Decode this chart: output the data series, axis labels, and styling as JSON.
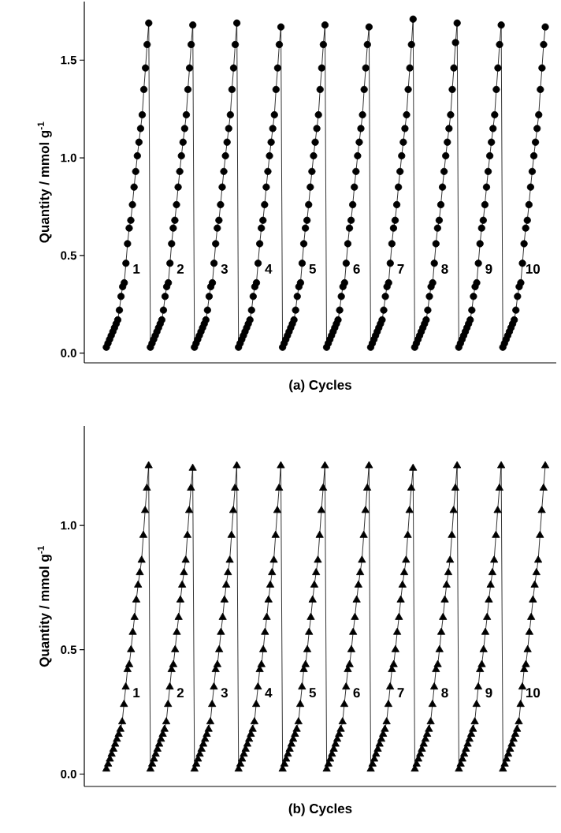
{
  "chart_data": [
    {
      "type": "line",
      "xlabel": "(a) Cycles",
      "ylabel": "Quantity / mmol g$^{-1}$",
      "marker": "circle",
      "tick_labels": "y",
      "ylim": [
        -0.05,
        1.8
      ],
      "yticks": [
        {
          "value": 0,
          "label": "0.0"
        },
        {
          "value": 0.5,
          "label": "0.5"
        },
        {
          "value": 1,
          "label": "1.0"
        },
        {
          "value": 1.5,
          "label": "1.5"
        }
      ],
      "categories": [
        null,
        null,
        null,
        null,
        null,
        null,
        null,
        null,
        null,
        null,
        null,
        null,
        null,
        null,
        null,
        null,
        null,
        null,
        null,
        null,
        null,
        null,
        null,
        null,
        null,
        null,
        null,
        null,
        null,
        null,
        null,
        null,
        null,
        null,
        null,
        null,
        null,
        null,
        null,
        null,
        null,
        null,
        null,
        null,
        null,
        null,
        null,
        null,
        null,
        null,
        null,
        null,
        null,
        null,
        null,
        null,
        null,
        null,
        null,
        null,
        null,
        null,
        null,
        null,
        null,
        null,
        null,
        null,
        null,
        null,
        null,
        null,
        null,
        null,
        null,
        null,
        null,
        null,
        null,
        null,
        null,
        null,
        null,
        null,
        null,
        null,
        null,
        null,
        null,
        null,
        null,
        null,
        null,
        null,
        null,
        null,
        null,
        null,
        null,
        null,
        null,
        null,
        null,
        null,
        null,
        null,
        null,
        null,
        null,
        null,
        null,
        null,
        null,
        null,
        null,
        null,
        null,
        null,
        null,
        null,
        null,
        null,
        null,
        null,
        null,
        null,
        null,
        null,
        null,
        null,
        null,
        null,
        null,
        null,
        null,
        null,
        null,
        null,
        null,
        null,
        null,
        null,
        null,
        null,
        null,
        null,
        null,
        null,
        null,
        null,
        null,
        null,
        null,
        null,
        null,
        null,
        null,
        null,
        null,
        null,
        null,
        null,
        null,
        null,
        null,
        null,
        null,
        null,
        null,
        null,
        null,
        null,
        null,
        null,
        null,
        null,
        null,
        null,
        null,
        null,
        null,
        null,
        null,
        null,
        null,
        null,
        null,
        null,
        null,
        null,
        null,
        null,
        null,
        null,
        null,
        null,
        null,
        null,
        null,
        null,
        null,
        null,
        null,
        null,
        null,
        null,
        null,
        null,
        null,
        null,
        null,
        null,
        null,
        null,
        null,
        null,
        null,
        null,
        null,
        null,
        null,
        null,
        null,
        null,
        null,
        null,
        null,
        null,
        null,
        null,
        null,
        null,
        null,
        null,
        null,
        null,
        null,
        null,
        null,
        null,
        null,
        null,
        null,
        null,
        null,
        null,
        null,
        null,
        null,
        null,
        null,
        null,
        null,
        null,
        null,
        null,
        null,
        null,
        null,
        null,
        null,
        null,
        null,
        null,
        null,
        null,
        null,
        null,
        null,
        null
      ],
      "series": [
        {
          "color": "#000000",
          "values": [
            0.03,
            0.05,
            0.07,
            0.09,
            0.11,
            0.13,
            0.15,
            0.17,
            0.22,
            0.29,
            0.34,
            0.36,
            0.46,
            0.56,
            0.64,
            0.68,
            0.76,
            0.85,
            0.93,
            1.01,
            1.08,
            1.15,
            1.22,
            1.35,
            1.46,
            1.58,
            1.69,
            0.03,
            0.05,
            0.07,
            0.09,
            0.11,
            0.13,
            0.15,
            0.17,
            0.22,
            0.29,
            0.34,
            0.36,
            0.46,
            0.56,
            0.64,
            0.68,
            0.76,
            0.85,
            0.93,
            1.01,
            1.08,
            1.15,
            1.22,
            1.35,
            1.46,
            1.58,
            1.68,
            0.03,
            0.05,
            0.07,
            0.09,
            0.11,
            0.13,
            0.15,
            0.17,
            0.22,
            0.29,
            0.34,
            0.36,
            0.46,
            0.56,
            0.64,
            0.68,
            0.76,
            0.85,
            0.93,
            1.01,
            1.08,
            1.15,
            1.22,
            1.35,
            1.46,
            1.58,
            1.69,
            0.03,
            0.05,
            0.07,
            0.09,
            0.11,
            0.13,
            0.15,
            0.17,
            0.22,
            0.29,
            0.34,
            0.36,
            0.46,
            0.56,
            0.64,
            0.68,
            0.76,
            0.85,
            0.93,
            1.01,
            1.08,
            1.15,
            1.22,
            1.35,
            1.46,
            1.58,
            1.67,
            0.03,
            0.05,
            0.07,
            0.09,
            0.11,
            0.13,
            0.15,
            0.17,
            0.22,
            0.29,
            0.34,
            0.36,
            0.46,
            0.56,
            0.64,
            0.68,
            0.76,
            0.85,
            0.93,
            1.01,
            1.08,
            1.15,
            1.22,
            1.35,
            1.46,
            1.58,
            1.68,
            0.03,
            0.05,
            0.07,
            0.09,
            0.11,
            0.13,
            0.15,
            0.17,
            0.22,
            0.29,
            0.34,
            0.36,
            0.46,
            0.56,
            0.64,
            0.68,
            0.76,
            0.85,
            0.93,
            1.01,
            1.08,
            1.15,
            1.22,
            1.35,
            1.46,
            1.58,
            1.67,
            0.03,
            0.05,
            0.07,
            0.09,
            0.11,
            0.13,
            0.15,
            0.17,
            0.22,
            0.29,
            0.34,
            0.36,
            0.46,
            0.56,
            0.64,
            0.68,
            0.76,
            0.85,
            0.93,
            1.01,
            1.08,
            1.15,
            1.22,
            1.35,
            1.46,
            1.58,
            1.71,
            0.03,
            0.05,
            0.07,
            0.09,
            0.11,
            0.13,
            0.15,
            0.17,
            0.22,
            0.29,
            0.34,
            0.36,
            0.46,
            0.56,
            0.64,
            0.68,
            0.76,
            0.85,
            0.93,
            1.01,
            1.08,
            1.15,
            1.22,
            1.35,
            1.46,
            1.59,
            1.69,
            0.03,
            0.05,
            0.07,
            0.09,
            0.11,
            0.13,
            0.15,
            0.17,
            0.22,
            0.29,
            0.34,
            0.36,
            0.46,
            0.56,
            0.64,
            0.68,
            0.76,
            0.85,
            0.93,
            1.01,
            1.08,
            1.15,
            1.22,
            1.35,
            1.46,
            1.58,
            1.68,
            0.03,
            0.05,
            0.07,
            0.09,
            0.11,
            0.13,
            0.15,
            0.17,
            0.22,
            0.29,
            0.34,
            0.36,
            0.46,
            0.56,
            0.64,
            0.68,
            0.76,
            0.85,
            0.93,
            1.01,
            1.08,
            1.15,
            1.22,
            1.35,
            1.46,
            1.58,
            1.67
          ]
        }
      ],
      "annotations": [
        "1",
        "2",
        "3",
        "4",
        "5",
        "6",
        "7",
        "8",
        "9",
        "10"
      ]
    },
    {
      "type": "line",
      "xlabel": "(b) Cycles",
      "ylabel": "Quantity / mmol g$^{-1}$",
      "marker": "triangle",
      "tick_labels": "y",
      "ylim": [
        -0.05,
        1.4
      ],
      "yticks": [
        {
          "value": 0,
          "label": "0.0"
        },
        {
          "value": 0.5,
          "label": "0.5"
        },
        {
          "value": 1,
          "label": "1.0"
        }
      ],
      "categories": [
        null,
        null,
        null,
        null,
        null,
        null,
        null,
        null,
        null,
        null,
        null,
        null,
        null,
        null,
        null,
        null,
        null,
        null,
        null,
        null,
        null,
        null,
        null,
        null,
        null,
        null,
        null,
        null,
        null,
        null,
        null,
        null,
        null,
        null,
        null,
        null,
        null,
        null,
        null,
        null,
        null,
        null,
        null,
        null,
        null,
        null,
        null,
        null,
        null,
        null,
        null,
        null,
        null,
        null,
        null,
        null,
        null,
        null,
        null,
        null,
        null,
        null,
        null,
        null,
        null,
        null,
        null,
        null,
        null,
        null,
        null,
        null,
        null,
        null,
        null,
        null,
        null,
        null,
        null,
        null,
        null,
        null,
        null,
        null,
        null,
        null,
        null,
        null,
        null,
        null,
        null,
        null,
        null,
        null,
        null,
        null,
        null,
        null,
        null,
        null,
        null,
        null,
        null,
        null,
        null,
        null,
        null,
        null,
        null,
        null,
        null,
        null,
        null,
        null,
        null,
        null,
        null,
        null,
        null,
        null,
        null,
        null,
        null,
        null,
        null,
        null,
        null,
        null,
        null,
        null,
        null,
        null,
        null,
        null,
        null,
        null,
        null,
        null,
        null,
        null,
        null,
        null,
        null,
        null,
        null,
        null,
        null,
        null,
        null,
        null,
        null,
        null,
        null,
        null,
        null,
        null,
        null,
        null,
        null,
        null,
        null,
        null,
        null,
        null,
        null,
        null,
        null,
        null,
        null,
        null,
        null,
        null,
        null,
        null,
        null,
        null,
        null,
        null,
        null,
        null,
        null,
        null,
        null,
        null,
        null,
        null,
        null,
        null,
        null,
        null,
        null,
        null,
        null,
        null,
        null,
        null,
        null,
        null,
        null,
        null,
        null,
        null,
        null,
        null,
        null,
        null,
        null,
        null,
        null,
        null,
        null,
        null,
        null,
        null,
        null,
        null,
        null,
        null,
        null,
        null,
        null,
        null,
        null,
        null,
        null,
        null,
        null,
        null,
        null,
        null,
        null,
        null,
        null,
        null,
        null,
        null,
        null,
        null,
        null,
        null,
        null,
        null,
        null,
        null,
        null,
        null,
        null,
        null,
        null,
        null
      ],
      "series": [
        {
          "color": "#000000",
          "values": [
            0.02,
            0.04,
            0.06,
            0.08,
            0.1,
            0.12,
            0.14,
            0.16,
            0.18,
            0.21,
            0.28,
            0.35,
            0.42,
            0.44,
            0.5,
            0.57,
            0.63,
            0.7,
            0.76,
            0.81,
            0.86,
            0.96,
            1.06,
            1.15,
            1.24,
            0.02,
            0.04,
            0.06,
            0.08,
            0.1,
            0.12,
            0.14,
            0.16,
            0.18,
            0.21,
            0.28,
            0.35,
            0.42,
            0.44,
            0.5,
            0.57,
            0.63,
            0.7,
            0.76,
            0.81,
            0.86,
            0.96,
            1.06,
            1.15,
            1.23,
            0.02,
            0.04,
            0.06,
            0.08,
            0.1,
            0.12,
            0.14,
            0.16,
            0.18,
            0.21,
            0.28,
            0.35,
            0.42,
            0.44,
            0.5,
            0.57,
            0.63,
            0.7,
            0.76,
            0.81,
            0.86,
            0.96,
            1.06,
            1.15,
            1.24,
            0.02,
            0.04,
            0.06,
            0.08,
            0.1,
            0.12,
            0.14,
            0.16,
            0.18,
            0.21,
            0.28,
            0.35,
            0.42,
            0.44,
            0.5,
            0.57,
            0.63,
            0.7,
            0.76,
            0.81,
            0.86,
            0.96,
            1.06,
            1.15,
            1.24,
            0.02,
            0.04,
            0.06,
            0.08,
            0.1,
            0.12,
            0.14,
            0.16,
            0.18,
            0.21,
            0.28,
            0.35,
            0.42,
            0.44,
            0.5,
            0.57,
            0.63,
            0.7,
            0.76,
            0.81,
            0.86,
            0.96,
            1.06,
            1.15,
            1.24,
            0.02,
            0.04,
            0.06,
            0.08,
            0.1,
            0.12,
            0.14,
            0.16,
            0.18,
            0.21,
            0.28,
            0.35,
            0.42,
            0.44,
            0.5,
            0.57,
            0.63,
            0.7,
            0.76,
            0.81,
            0.86,
            0.96,
            1.06,
            1.15,
            1.24,
            0.02,
            0.04,
            0.06,
            0.08,
            0.1,
            0.12,
            0.14,
            0.16,
            0.18,
            0.21,
            0.28,
            0.35,
            0.42,
            0.44,
            0.5,
            0.57,
            0.63,
            0.7,
            0.76,
            0.81,
            0.86,
            0.96,
            1.06,
            1.15,
            1.23,
            0.02,
            0.04,
            0.06,
            0.08,
            0.1,
            0.12,
            0.14,
            0.16,
            0.18,
            0.21,
            0.28,
            0.35,
            0.42,
            0.44,
            0.5,
            0.57,
            0.63,
            0.7,
            0.76,
            0.81,
            0.86,
            0.96,
            1.06,
            1.15,
            1.24,
            0.02,
            0.04,
            0.06,
            0.08,
            0.1,
            0.12,
            0.14,
            0.16,
            0.18,
            0.21,
            0.28,
            0.35,
            0.42,
            0.44,
            0.5,
            0.57,
            0.63,
            0.7,
            0.76,
            0.81,
            0.86,
            0.96,
            1.06,
            1.15,
            1.24,
            0.02,
            0.04,
            0.06,
            0.08,
            0.1,
            0.12,
            0.14,
            0.16,
            0.18,
            0.21,
            0.28,
            0.35,
            0.42,
            0.44,
            0.5,
            0.57,
            0.63,
            0.7,
            0.76,
            0.81,
            0.86,
            0.96,
            1.06,
            1.15,
            1.24
          ]
        }
      ],
      "annotations": [
        "1",
        "2",
        "3",
        "4",
        "5",
        "6",
        "7",
        "8",
        "9",
        "10"
      ]
    }
  ]
}
